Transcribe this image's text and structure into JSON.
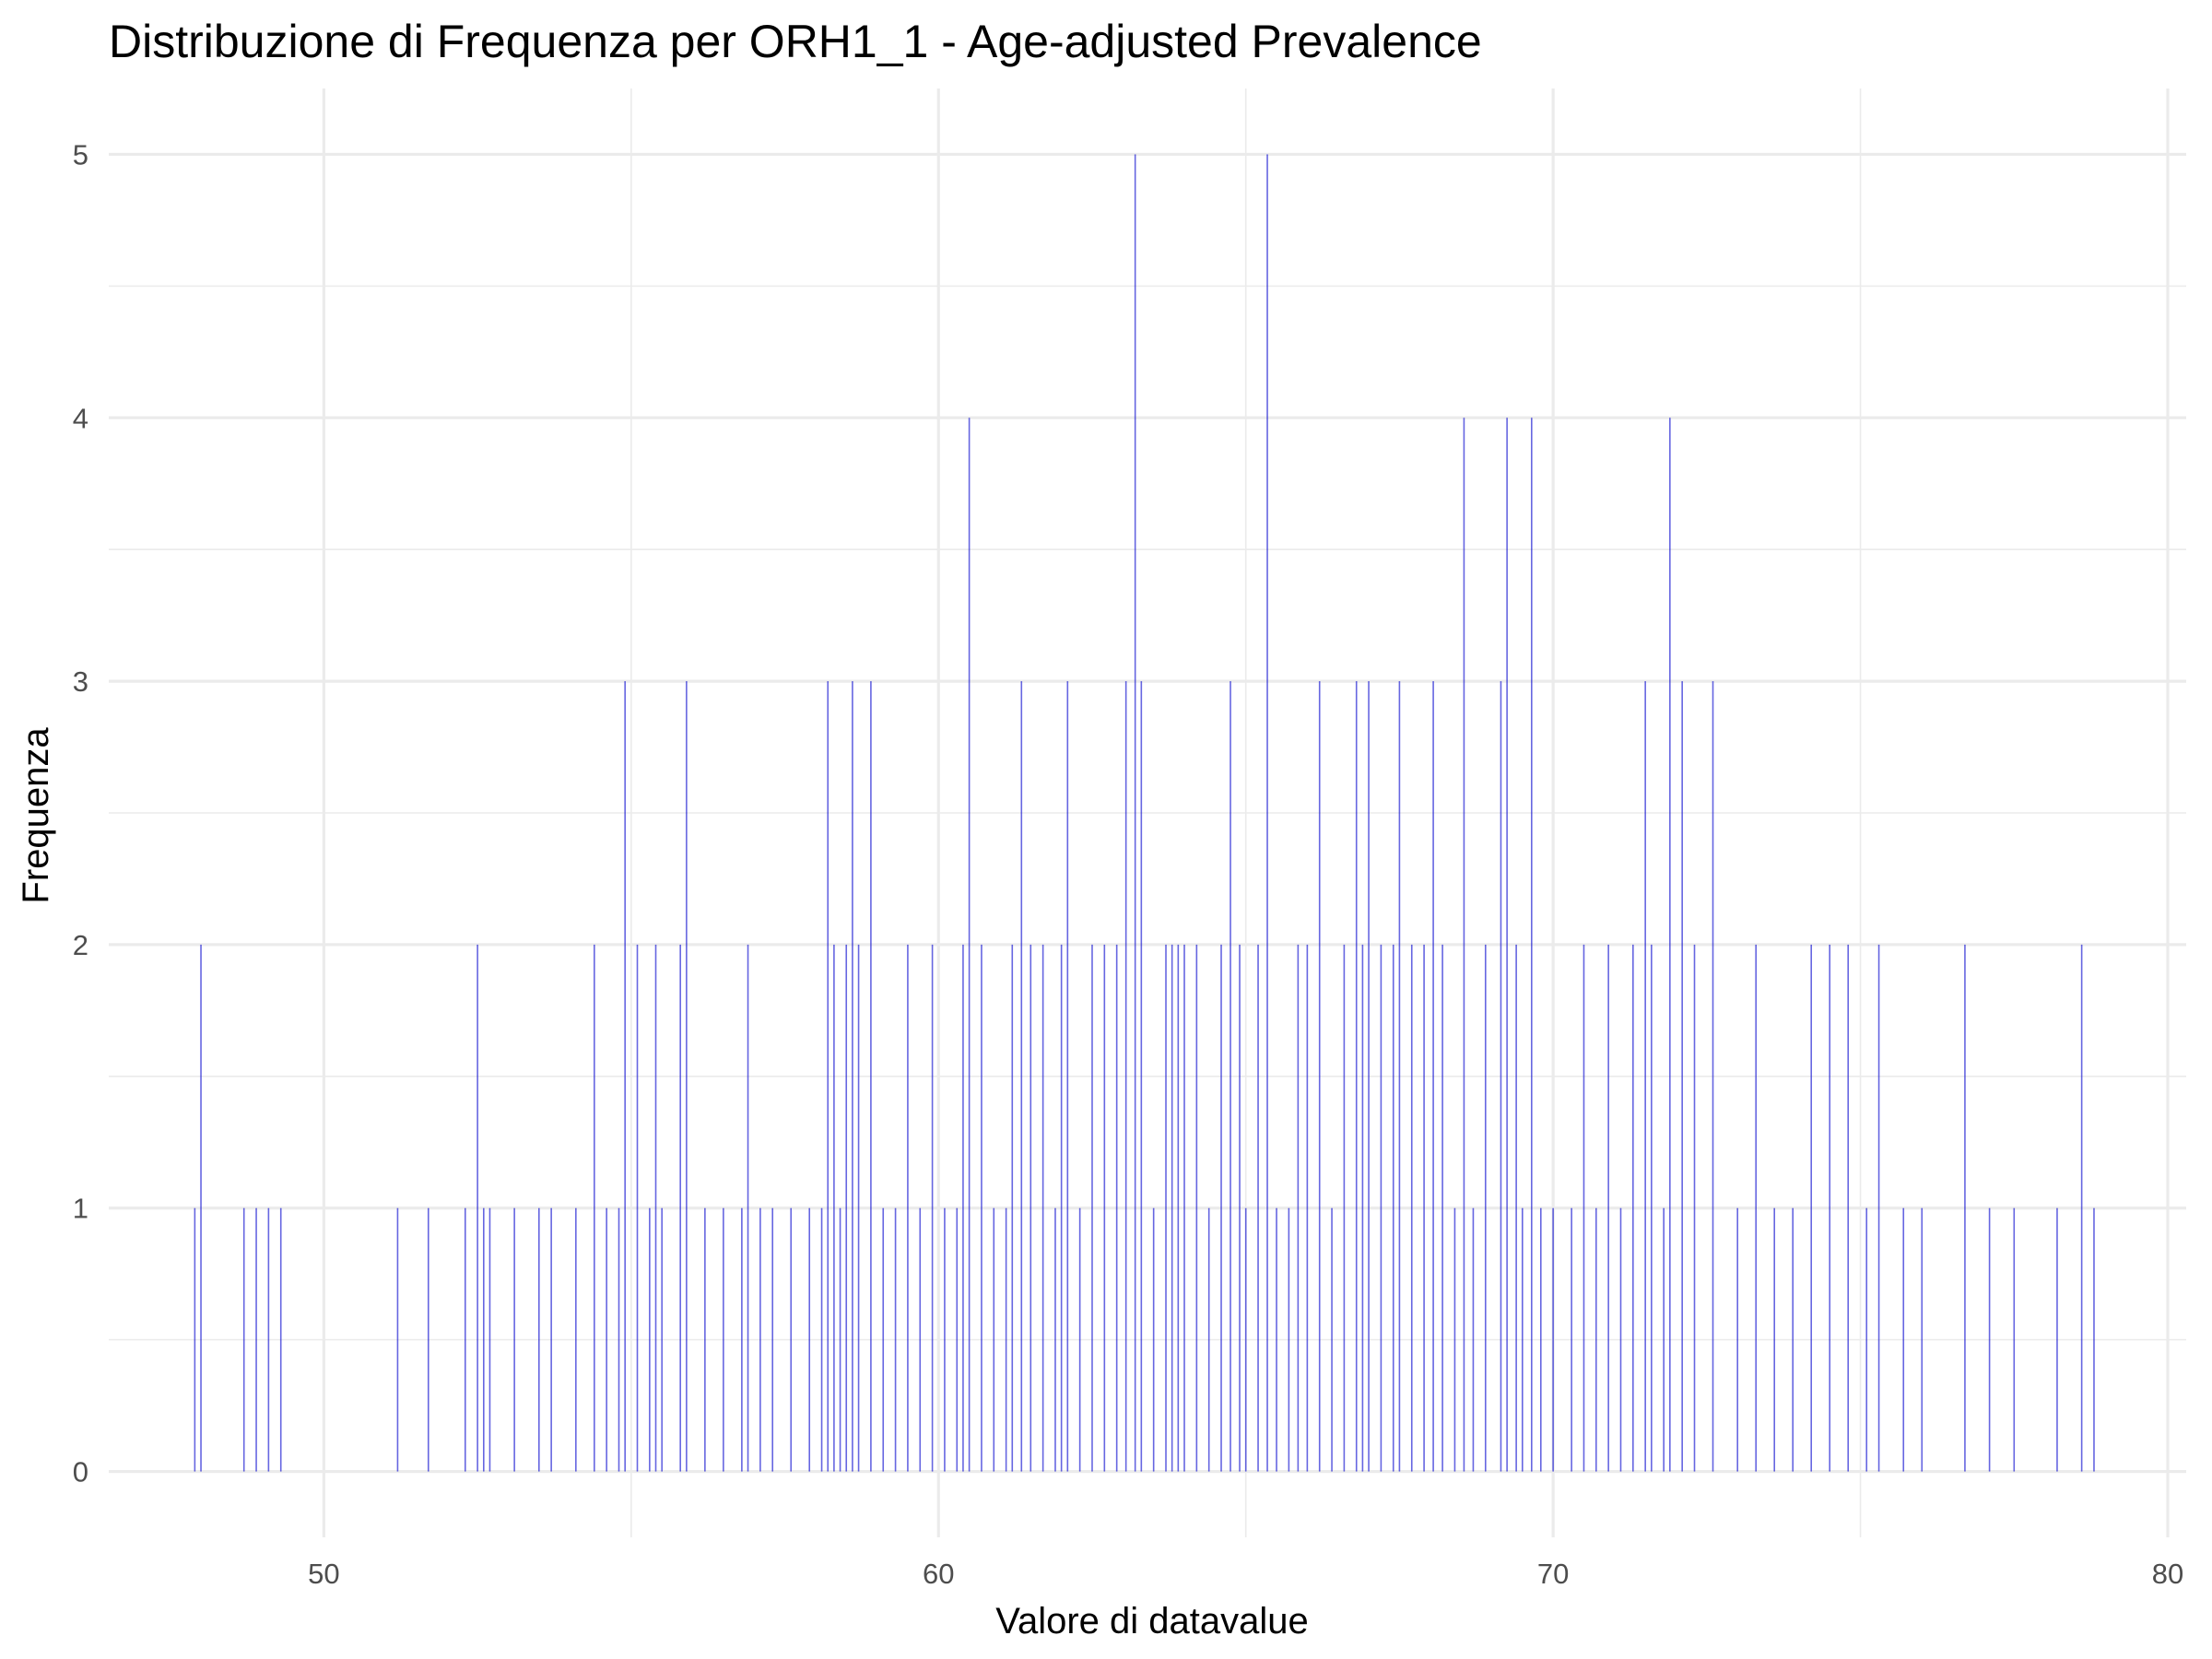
{
  "chart_data": {
    "type": "bar",
    "title": "Distribuzione di Frequenza per ORH1_1 - Age-adjusted Prevalence",
    "xlabel": "Valore di datavalue",
    "ylabel": "Frequenza",
    "xlim": [
      46.5,
      80.3
    ],
    "ylim": [
      -0.25,
      5.25
    ],
    "x_ticks": [
      50,
      60,
      70,
      80
    ],
    "x_tick_labels": [
      "50",
      "60",
      "70",
      "80"
    ],
    "y_ticks": [
      0,
      1,
      2,
      3,
      4,
      5
    ],
    "y_tick_labels": [
      "0",
      "1",
      "2",
      "3",
      "4",
      "5"
    ],
    "grid": true,
    "bar_color": "#0000cd",
    "bar_opacity": 0.6,
    "bars": [
      {
        "x": 47.9,
        "y": 1
      },
      {
        "x": 48.0,
        "y": 2
      },
      {
        "x": 48.7,
        "y": 1
      },
      {
        "x": 48.9,
        "y": 1
      },
      {
        "x": 49.1,
        "y": 1
      },
      {
        "x": 49.3,
        "y": 1
      },
      {
        "x": 51.2,
        "y": 1
      },
      {
        "x": 51.7,
        "y": 1
      },
      {
        "x": 52.3,
        "y": 1
      },
      {
        "x": 52.5,
        "y": 2
      },
      {
        "x": 52.6,
        "y": 1
      },
      {
        "x": 52.7,
        "y": 1
      },
      {
        "x": 53.1,
        "y": 1
      },
      {
        "x": 53.5,
        "y": 1
      },
      {
        "x": 53.7,
        "y": 1
      },
      {
        "x": 54.1,
        "y": 1
      },
      {
        "x": 54.4,
        "y": 2
      },
      {
        "x": 54.6,
        "y": 1
      },
      {
        "x": 54.8,
        "y": 1
      },
      {
        "x": 54.9,
        "y": 3
      },
      {
        "x": 55.1,
        "y": 2
      },
      {
        "x": 55.3,
        "y": 1
      },
      {
        "x": 55.4,
        "y": 2
      },
      {
        "x": 55.5,
        "y": 1
      },
      {
        "x": 55.8,
        "y": 2
      },
      {
        "x": 55.9,
        "y": 3
      },
      {
        "x": 56.2,
        "y": 1
      },
      {
        "x": 56.5,
        "y": 1
      },
      {
        "x": 56.8,
        "y": 1
      },
      {
        "x": 56.9,
        "y": 2
      },
      {
        "x": 57.1,
        "y": 1
      },
      {
        "x": 57.3,
        "y": 1
      },
      {
        "x": 57.6,
        "y": 1
      },
      {
        "x": 57.9,
        "y": 1
      },
      {
        "x": 58.1,
        "y": 1
      },
      {
        "x": 58.2,
        "y": 3
      },
      {
        "x": 58.3,
        "y": 2
      },
      {
        "x": 58.4,
        "y": 1
      },
      {
        "x": 58.5,
        "y": 2
      },
      {
        "x": 58.6,
        "y": 3
      },
      {
        "x": 58.7,
        "y": 2
      },
      {
        "x": 58.9,
        "y": 3
      },
      {
        "x": 59.1,
        "y": 1
      },
      {
        "x": 59.3,
        "y": 1
      },
      {
        "x": 59.5,
        "y": 2
      },
      {
        "x": 59.7,
        "y": 1
      },
      {
        "x": 59.9,
        "y": 2
      },
      {
        "x": 60.1,
        "y": 1
      },
      {
        "x": 60.3,
        "y": 1
      },
      {
        "x": 60.4,
        "y": 2
      },
      {
        "x": 60.5,
        "y": 4
      },
      {
        "x": 60.7,
        "y": 2
      },
      {
        "x": 60.9,
        "y": 1
      },
      {
        "x": 61.1,
        "y": 1
      },
      {
        "x": 61.2,
        "y": 2
      },
      {
        "x": 61.35,
        "y": 3
      },
      {
        "x": 61.5,
        "y": 2
      },
      {
        "x": 61.7,
        "y": 2
      },
      {
        "x": 61.9,
        "y": 1
      },
      {
        "x": 62.0,
        "y": 2
      },
      {
        "x": 62.1,
        "y": 3
      },
      {
        "x": 62.3,
        "y": 1
      },
      {
        "x": 62.5,
        "y": 2
      },
      {
        "x": 62.7,
        "y": 2
      },
      {
        "x": 62.9,
        "y": 2
      },
      {
        "x": 63.05,
        "y": 3
      },
      {
        "x": 63.2,
        "y": 5
      },
      {
        "x": 63.3,
        "y": 3
      },
      {
        "x": 63.5,
        "y": 1
      },
      {
        "x": 63.7,
        "y": 2
      },
      {
        "x": 63.8,
        "y": 2
      },
      {
        "x": 63.9,
        "y": 2
      },
      {
        "x": 64.0,
        "y": 2
      },
      {
        "x": 64.2,
        "y": 2
      },
      {
        "x": 64.4,
        "y": 1
      },
      {
        "x": 64.6,
        "y": 2
      },
      {
        "x": 64.75,
        "y": 3
      },
      {
        "x": 64.9,
        "y": 2
      },
      {
        "x": 65.0,
        "y": 1
      },
      {
        "x": 65.2,
        "y": 2
      },
      {
        "x": 65.35,
        "y": 5
      },
      {
        "x": 65.5,
        "y": 1
      },
      {
        "x": 65.7,
        "y": 1
      },
      {
        "x": 65.85,
        "y": 2
      },
      {
        "x": 66.0,
        "y": 2
      },
      {
        "x": 66.2,
        "y": 3
      },
      {
        "x": 66.4,
        "y": 1
      },
      {
        "x": 66.6,
        "y": 2
      },
      {
        "x": 66.8,
        "y": 3
      },
      {
        "x": 66.9,
        "y": 2
      },
      {
        "x": 67.0,
        "y": 3
      },
      {
        "x": 67.2,
        "y": 2
      },
      {
        "x": 67.4,
        "y": 2
      },
      {
        "x": 67.5,
        "y": 3
      },
      {
        "x": 67.7,
        "y": 2
      },
      {
        "x": 67.9,
        "y": 2
      },
      {
        "x": 68.05,
        "y": 3
      },
      {
        "x": 68.2,
        "y": 2
      },
      {
        "x": 68.4,
        "y": 1
      },
      {
        "x": 68.55,
        "y": 4
      },
      {
        "x": 68.7,
        "y": 1
      },
      {
        "x": 68.9,
        "y": 2
      },
      {
        "x": 69.15,
        "y": 3
      },
      {
        "x": 69.25,
        "y": 4
      },
      {
        "x": 69.4,
        "y": 2
      },
      {
        "x": 69.5,
        "y": 1
      },
      {
        "x": 69.65,
        "y": 4
      },
      {
        "x": 69.8,
        "y": 1
      },
      {
        "x": 70.0,
        "y": 1
      },
      {
        "x": 70.3,
        "y": 1
      },
      {
        "x": 70.5,
        "y": 2
      },
      {
        "x": 70.7,
        "y": 1
      },
      {
        "x": 70.9,
        "y": 2
      },
      {
        "x": 71.1,
        "y": 1
      },
      {
        "x": 71.3,
        "y": 2
      },
      {
        "x": 71.5,
        "y": 3
      },
      {
        "x": 71.6,
        "y": 2
      },
      {
        "x": 71.8,
        "y": 1
      },
      {
        "x": 71.9,
        "y": 4
      },
      {
        "x": 72.1,
        "y": 3
      },
      {
        "x": 72.3,
        "y": 2
      },
      {
        "x": 72.6,
        "y": 3
      },
      {
        "x": 73.0,
        "y": 1
      },
      {
        "x": 73.3,
        "y": 2
      },
      {
        "x": 73.6,
        "y": 1
      },
      {
        "x": 73.9,
        "y": 1
      },
      {
        "x": 74.2,
        "y": 2
      },
      {
        "x": 74.5,
        "y": 2
      },
      {
        "x": 74.8,
        "y": 2
      },
      {
        "x": 75.1,
        "y": 1
      },
      {
        "x": 75.3,
        "y": 2
      },
      {
        "x": 75.7,
        "y": 1
      },
      {
        "x": 76.0,
        "y": 1
      },
      {
        "x": 76.7,
        "y": 2
      },
      {
        "x": 77.1,
        "y": 1
      },
      {
        "x": 77.5,
        "y": 1
      },
      {
        "x": 78.2,
        "y": 1
      },
      {
        "x": 78.6,
        "y": 2
      },
      {
        "x": 78.8,
        "y": 1
      }
    ]
  }
}
